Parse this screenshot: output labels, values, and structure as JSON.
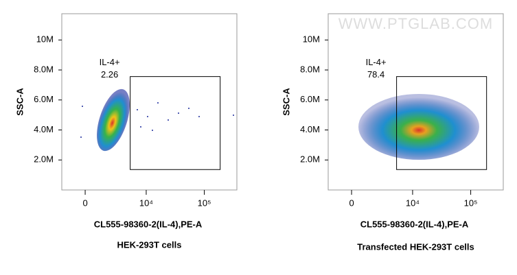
{
  "chart_data": [
    {
      "type": "scatter",
      "caption": "HEK-293T cells",
      "xlabel": "CL555-98360-2(IL-4),PE-A",
      "ylabel": "SSC-A",
      "xscale": "biexponential",
      "xlim": [
        -1920,
        361600
      ],
      "xticks": [
        0,
        {
          "value": 10000,
          "label": "10⁴"
        },
        {
          "value": 100000,
          "label": "10⁵"
        }
      ],
      "ylim": [
        0,
        11750000
      ],
      "yticks": [
        {
          "value": 2000000,
          "label": "2.0M"
        },
        {
          "value": 4000000,
          "label": "4.0M"
        },
        {
          "value": 6000000,
          "label": "6.0M"
        },
        {
          "value": 8000000,
          "label": "8.0M"
        },
        {
          "value": 10000000,
          "label": "10M"
        }
      ],
      "gate": {
        "label": "IL-4+",
        "value": 2.26,
        "xlim": [
          5200,
          187000
        ],
        "ylim": [
          1360000,
          7560000
        ]
      }
    },
    {
      "type": "scatter",
      "caption": "Transfected HEK-293T cells",
      "xlabel": "CL555-98360-2(IL-4),PE-A",
      "ylabel": "SSC-A",
      "watermark": "WWW.PTGLAB.COM",
      "xscale": "biexponential",
      "xlim": [
        -1920,
        361600
      ],
      "xticks": [
        0,
        {
          "value": 10000,
          "label": "10⁴"
        },
        {
          "value": 100000,
          "label": "10⁵"
        }
      ],
      "ylim": [
        0,
        11750000
      ],
      "yticks": [
        {
          "value": 2000000,
          "label": "2.0M"
        },
        {
          "value": 4000000,
          "label": "4.0M"
        },
        {
          "value": 6000000,
          "label": "6.0M"
        },
        {
          "value": 8000000,
          "label": "8.0M"
        },
        {
          "value": 10000000,
          "label": "10M"
        }
      ],
      "gate": {
        "label": "IL-4+",
        "value": 78.4,
        "xlim": [
          5200,
          187000
        ],
        "ylim": [
          1360000,
          7560000
        ]
      }
    }
  ]
}
